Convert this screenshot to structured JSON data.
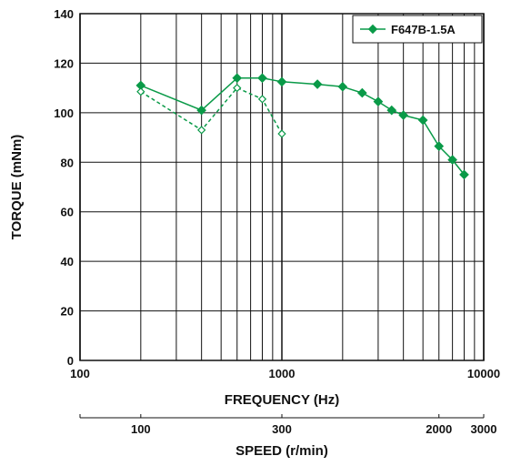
{
  "chart_data": {
    "type": "line",
    "xlabel": "FREQUENCY (Hz)",
    "ylabel": "TORQUE (mNm)",
    "x_scale": "log",
    "xlim": [
      100,
      10000
    ],
    "ylim": [
      0,
      140
    ],
    "grid": true,
    "x_ticks": [
      "100",
      "1000",
      "10000"
    ],
    "y_ticks": [
      "0",
      "20",
      "40",
      "60",
      "80",
      "100",
      "120",
      "140"
    ],
    "secondary_axis": {
      "label": "SPEED (r/min)",
      "ticks": [
        {
          "label": "100",
          "freq": 200
        },
        {
          "label": "300",
          "freq": 1000
        },
        {
          "label": "2000",
          "freq": 6000
        },
        {
          "label": "3000",
          "freq": 10000
        }
      ]
    },
    "legend": {
      "position": "top-right",
      "entries": [
        "F647B-1.5A"
      ]
    },
    "series": [
      {
        "name": "F647B-1.5A",
        "color": "#0a9a48",
        "style": "solid",
        "marker": "filled-diamond",
        "x": [
          200,
          400,
          600,
          800,
          1000,
          1500,
          2000,
          2500,
          3000,
          3500,
          4000,
          5000,
          6000,
          7000,
          8000
        ],
        "y": [
          111,
          101,
          114,
          114,
          112.5,
          111.5,
          110.5,
          108,
          104.5,
          101,
          99,
          97,
          86.5,
          81,
          75
        ]
      },
      {
        "name": "",
        "color": "#0a9a48",
        "style": "dashed",
        "marker": "open-diamond",
        "x": [
          200,
          400,
          600,
          800,
          1000
        ],
        "y": [
          108.5,
          93,
          110,
          105.5,
          91.5
        ]
      }
    ]
  }
}
